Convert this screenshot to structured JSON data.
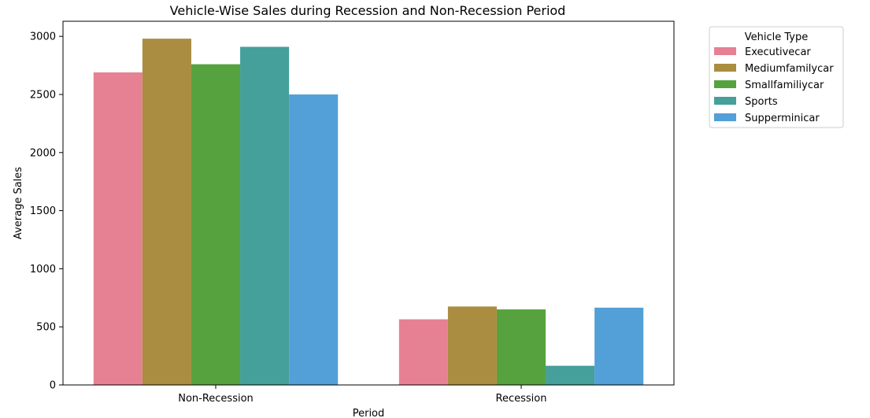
{
  "chart_data": {
    "type": "bar",
    "title": "Vehicle-Wise Sales during Recession and Non-Recession Period",
    "xlabel": "Period",
    "ylabel": "Average Sales",
    "categories": [
      "Non-Recession",
      "Recession"
    ],
    "ylim": [
      0,
      3130
    ],
    "yticks": [
      0,
      500,
      1000,
      1500,
      2000,
      2500,
      3000
    ],
    "grid": false,
    "legend": {
      "title": "Vehicle Type",
      "placement": "outside-right-top"
    },
    "series": [
      {
        "name": "Executivecar",
        "color": "#e68193",
        "values": [
          2690,
          565
        ]
      },
      {
        "name": "Mediumfamilycar",
        "color": "#aa8d40",
        "values": [
          2980,
          675
        ]
      },
      {
        "name": "Smallfamiliycar",
        "color": "#56a23f",
        "values": [
          2760,
          650
        ]
      },
      {
        "name": "Sports",
        "color": "#459f9a",
        "values": [
          2910,
          165
        ]
      },
      {
        "name": "Supperminicar",
        "color": "#539fd7",
        "values": [
          2500,
          665
        ]
      }
    ]
  }
}
